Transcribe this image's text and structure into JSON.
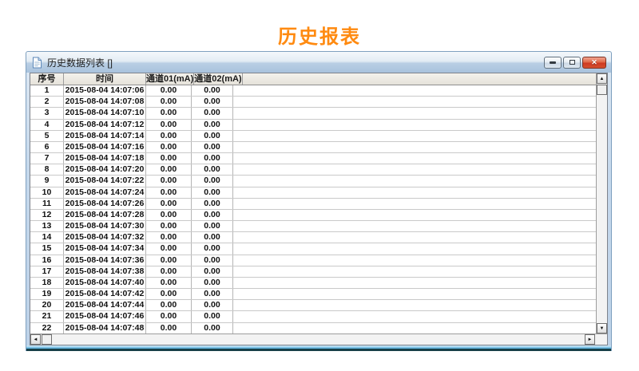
{
  "page": {
    "title": "历史报表"
  },
  "colors": {
    "accent_orange": "#FF8A10",
    "titlebar_gradient_top": "#F4F8FB",
    "titlebar_gradient_bottom": "#A9C3DD",
    "frame_bottom_edge": "#173F47",
    "close_button_red": "#CF3A22",
    "header_bg": "#ECE9E2"
  },
  "window": {
    "title": "历史数据列表 []",
    "icons": {
      "document": "document-icon",
      "minimize": "minimize-icon",
      "restore": "restore-icon",
      "close_glyph": "✕"
    }
  },
  "scrollbar": {
    "up_glyph": "▲",
    "down_glyph": "▼",
    "left_glyph": "◄",
    "right_glyph": "►"
  },
  "table": {
    "columns": [
      "序号",
      "时间",
      "通道01(mA)",
      "通道02(mA)"
    ],
    "rows": [
      {
        "no": "1",
        "time": "2015-08-04 14:07:06",
        "ch1": "0.00",
        "ch2": "0.00"
      },
      {
        "no": "2",
        "time": "2015-08-04 14:07:08",
        "ch1": "0.00",
        "ch2": "0.00"
      },
      {
        "no": "3",
        "time": "2015-08-04 14:07:10",
        "ch1": "0.00",
        "ch2": "0.00"
      },
      {
        "no": "4",
        "time": "2015-08-04 14:07:12",
        "ch1": "0.00",
        "ch2": "0.00"
      },
      {
        "no": "5",
        "time": "2015-08-04 14:07:14",
        "ch1": "0.00",
        "ch2": "0.00"
      },
      {
        "no": "6",
        "time": "2015-08-04 14:07:16",
        "ch1": "0.00",
        "ch2": "0.00"
      },
      {
        "no": "7",
        "time": "2015-08-04 14:07:18",
        "ch1": "0.00",
        "ch2": "0.00"
      },
      {
        "no": "8",
        "time": "2015-08-04 14:07:20",
        "ch1": "0.00",
        "ch2": "0.00"
      },
      {
        "no": "9",
        "time": "2015-08-04 14:07:22",
        "ch1": "0.00",
        "ch2": "0.00"
      },
      {
        "no": "10",
        "time": "2015-08-04 14:07:24",
        "ch1": "0.00",
        "ch2": "0.00"
      },
      {
        "no": "11",
        "time": "2015-08-04 14:07:26",
        "ch1": "0.00",
        "ch2": "0.00"
      },
      {
        "no": "12",
        "time": "2015-08-04 14:07:28",
        "ch1": "0.00",
        "ch2": "0.00"
      },
      {
        "no": "13",
        "time": "2015-08-04 14:07:30",
        "ch1": "0.00",
        "ch2": "0.00"
      },
      {
        "no": "14",
        "time": "2015-08-04 14:07:32",
        "ch1": "0.00",
        "ch2": "0.00"
      },
      {
        "no": "15",
        "time": "2015-08-04 14:07:34",
        "ch1": "0.00",
        "ch2": "0.00"
      },
      {
        "no": "16",
        "time": "2015-08-04 14:07:36",
        "ch1": "0.00",
        "ch2": "0.00"
      },
      {
        "no": "17",
        "time": "2015-08-04 14:07:38",
        "ch1": "0.00",
        "ch2": "0.00"
      },
      {
        "no": "18",
        "time": "2015-08-04 14:07:40",
        "ch1": "0.00",
        "ch2": "0.00"
      },
      {
        "no": "19",
        "time": "2015-08-04 14:07:42",
        "ch1": "0.00",
        "ch2": "0.00"
      },
      {
        "no": "20",
        "time": "2015-08-04 14:07:44",
        "ch1": "0.00",
        "ch2": "0.00"
      },
      {
        "no": "21",
        "time": "2015-08-04 14:07:46",
        "ch1": "0.00",
        "ch2": "0.00"
      },
      {
        "no": "22",
        "time": "2015-08-04 14:07:48",
        "ch1": "0.00",
        "ch2": "0.00"
      }
    ]
  }
}
